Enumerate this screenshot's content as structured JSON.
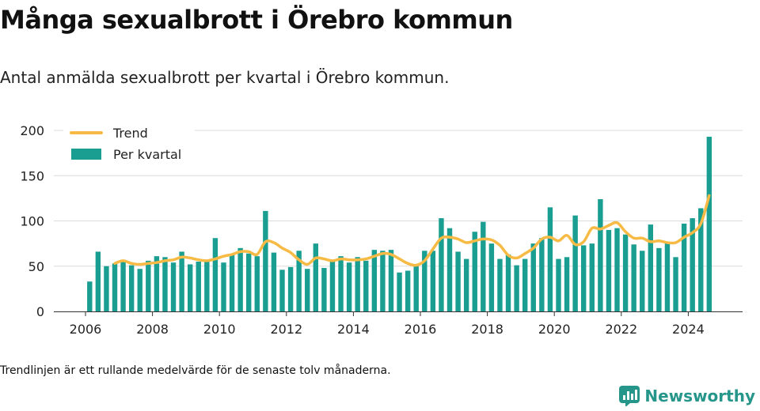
{
  "title": "Många sexualbrott i Örebro kommun",
  "subtitle": "Antal anmälda sexualbrott per kvartal i Örebro kommun.",
  "note": "Trendlinjen är ett rullande medelvärde för de senaste tolv månaderna.",
  "brand": {
    "name": "Newsworthy",
    "color": "#26968a",
    "icon": "bar-chart-logo-icon"
  },
  "chart_data": {
    "type": "bar",
    "title": "",
    "xlabel": "",
    "ylabel": "",
    "ylim": [
      0,
      200
    ],
    "yticks": [
      0,
      50,
      100,
      150,
      200
    ],
    "xticks": [
      "2006",
      "2008",
      "2010",
      "2012",
      "2014",
      "2016",
      "2018",
      "2020",
      "2022",
      "2024"
    ],
    "grid": true,
    "legend": "top-left",
    "x_start": "2006-Q1",
    "categories": [
      "2006-Q1",
      "2006-Q2",
      "2006-Q3",
      "2006-Q4",
      "2007-Q1",
      "2007-Q2",
      "2007-Q3",
      "2007-Q4",
      "2008-Q1",
      "2008-Q2",
      "2008-Q3",
      "2008-Q4",
      "2009-Q1",
      "2009-Q2",
      "2009-Q3",
      "2009-Q4",
      "2010-Q1",
      "2010-Q2",
      "2010-Q3",
      "2010-Q4",
      "2011-Q1",
      "2011-Q2",
      "2011-Q3",
      "2011-Q4",
      "2012-Q1",
      "2012-Q2",
      "2012-Q3",
      "2012-Q4",
      "2013-Q1",
      "2013-Q2",
      "2013-Q3",
      "2013-Q4",
      "2014-Q1",
      "2014-Q2",
      "2014-Q3",
      "2014-Q4",
      "2015-Q1",
      "2015-Q2",
      "2015-Q3",
      "2015-Q4",
      "2016-Q1",
      "2016-Q2",
      "2016-Q3",
      "2016-Q4",
      "2017-Q1",
      "2017-Q2",
      "2017-Q3",
      "2017-Q4",
      "2018-Q1",
      "2018-Q2",
      "2018-Q3",
      "2018-Q4",
      "2019-Q1",
      "2019-Q2",
      "2019-Q3",
      "2019-Q4",
      "2020-Q1",
      "2020-Q2",
      "2020-Q3",
      "2020-Q4",
      "2021-Q1",
      "2021-Q2",
      "2021-Q3",
      "2021-Q4",
      "2022-Q1",
      "2022-Q2",
      "2022-Q3",
      "2022-Q4",
      "2023-Q1",
      "2023-Q2",
      "2023-Q3",
      "2023-Q4",
      "2024-Q1",
      "2024-Q2",
      "2024-Q3"
    ],
    "series": [
      {
        "name": "Per kvartal",
        "kind": "bar",
        "color": "#1a9e91",
        "values": [
          33,
          66,
          50,
          53,
          57,
          51,
          47,
          56,
          61,
          60,
          54,
          66,
          52,
          55,
          55,
          81,
          54,
          63,
          70,
          64,
          61,
          111,
          65,
          46,
          49,
          67,
          47,
          75,
          48,
          56,
          61,
          54,
          60,
          56,
          68,
          67,
          68,
          43,
          45,
          50,
          67,
          67,
          103,
          92,
          66,
          58,
          88,
          99,
          75,
          58,
          63,
          51,
          58,
          75,
          81,
          115,
          58,
          60,
          106,
          73,
          75,
          124,
          90,
          92,
          85,
          74,
          67,
          96,
          70,
          76,
          60,
          97,
          103,
          114,
          193
        ]
      },
      {
        "name": "Trend",
        "kind": "line",
        "color": "#f7bb45",
        "values": [
          null,
          null,
          null,
          53,
          56,
          53,
          52,
          53,
          54,
          56,
          57,
          60,
          59,
          57,
          56,
          58,
          61,
          63,
          66,
          66,
          63,
          77,
          76,
          70,
          65,
          57,
          52,
          59,
          58,
          56,
          58,
          57,
          57,
          58,
          61,
          64,
          63,
          58,
          53,
          51,
          56,
          69,
          81,
          82,
          80,
          76,
          78,
          80,
          79,
          73,
          62,
          59,
          64,
          70,
          80,
          82,
          78,
          84,
          74,
          77,
          92,
          91,
          95,
          98,
          88,
          81,
          81,
          77,
          78,
          76,
          76,
          82,
          87,
          97,
          128
        ]
      }
    ]
  }
}
